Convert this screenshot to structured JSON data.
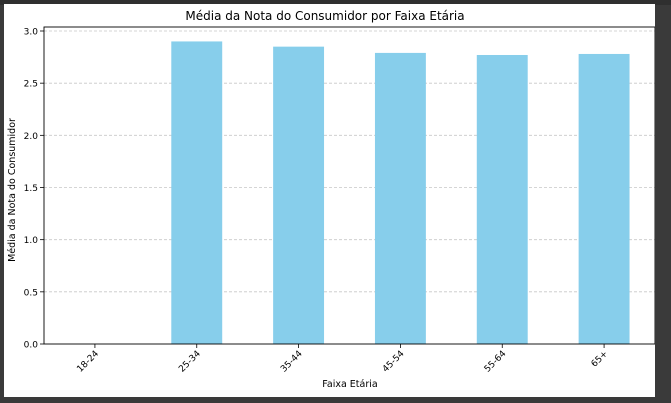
{
  "chart_data": {
    "type": "bar",
    "title": "Média da Nota do Consumidor por Faixa Etária",
    "xlabel": "Faixa Etária",
    "ylabel": "Média da Nota do Consumidor",
    "categories": [
      "18-24",
      "25-34",
      "35-44",
      "45-54",
      "55-64",
      "65+"
    ],
    "values": [
      null,
      2.9,
      2.85,
      2.79,
      2.77,
      2.78
    ],
    "ylim": [
      0,
      3.0
    ],
    "yticks": [
      "0.0",
      "0.5",
      "1.0",
      "1.5",
      "2.0",
      "2.5",
      "3.0"
    ],
    "grid": "horizontal-dashed",
    "bar_color": "#87ceeb"
  }
}
